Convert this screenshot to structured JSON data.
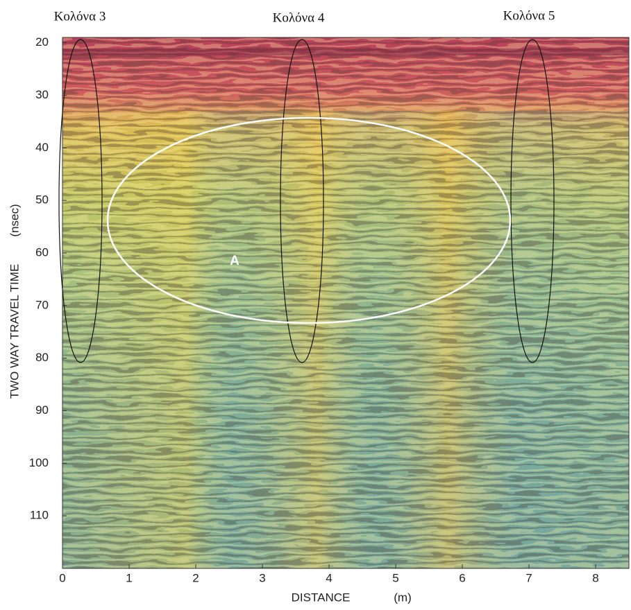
{
  "chart_data": {
    "type": "radargram",
    "x_label": "DISTANCE",
    "x_unit": "(m)",
    "y_label": "TWO WAY TRAVEL TIME",
    "y_unit": "(nsec)",
    "annotations": [
      "Κολόνα 3",
      "Κολόνα 4",
      "Κολόνα 5",
      "A"
    ],
    "xlim": [
      0,
      8.5
    ],
    "xticks": [
      0,
      1,
      2,
      3,
      4,
      5,
      6,
      7,
      8
    ],
    "ylim": [
      19,
      120
    ],
    "yticks": [
      20,
      30,
      40,
      50,
      60,
      70,
      80,
      90,
      100,
      110
    ]
  }
}
